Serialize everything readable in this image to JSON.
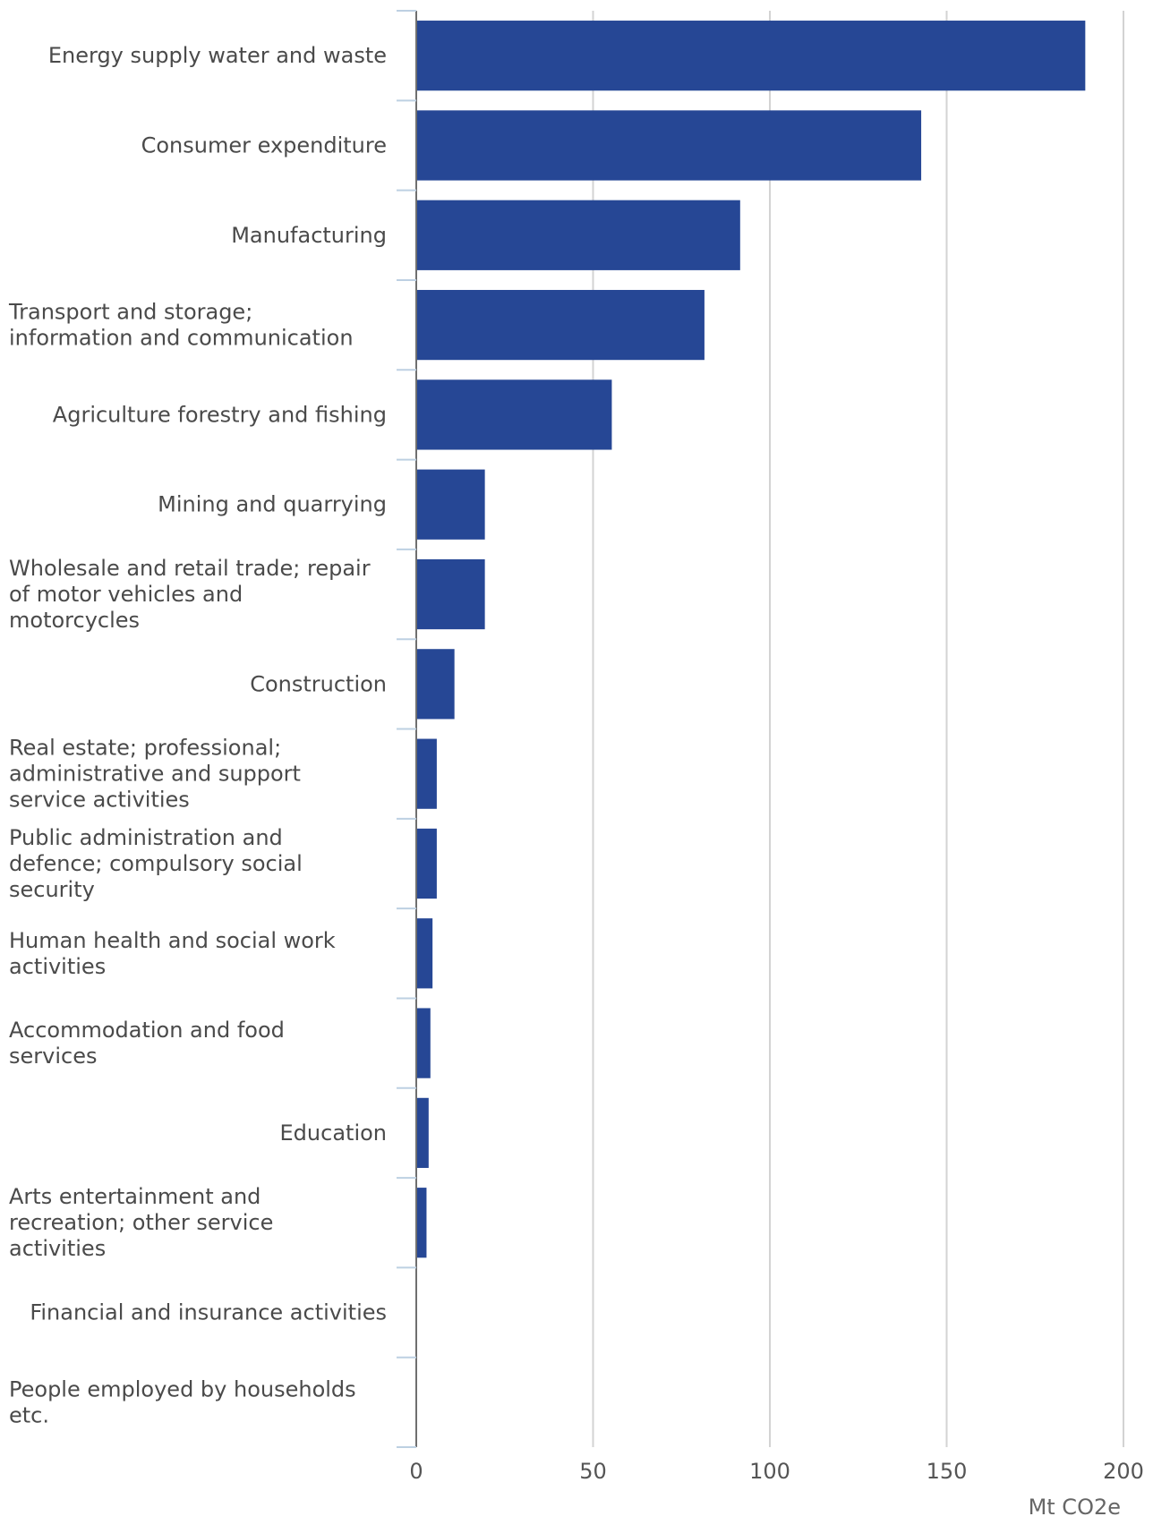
{
  "chart_data": {
    "type": "bar",
    "orientation": "horizontal",
    "categories": [
      "Energy supply water and waste",
      "Consumer expenditure",
      "Manufacturing",
      "Transport and storage; information and communication",
      "Agriculture forestry and fishing",
      "Mining and quarrying",
      "Wholesale and retail trade; repair of motor vehicles and motorcycles",
      "Construction",
      "Real estate; professional; administrative and support service activities",
      "Public administration and defence; compulsory social security",
      "Human health and social work activities",
      "Accommodation and food services",
      "Education",
      "Arts entertainment and recreation; other service activities",
      "Financial and insurance activities",
      "People employed by households etc."
    ],
    "category_lines": [
      [
        "Energy supply water and waste"
      ],
      [
        "Consumer expenditure"
      ],
      [
        "Manufacturing"
      ],
      [
        "Transport and storage;",
        "information and communication"
      ],
      [
        "Agriculture forestry and fishing"
      ],
      [
        "Mining and quarrying"
      ],
      [
        "Wholesale and retail trade; repair",
        "of motor vehicles and",
        "motorcycles"
      ],
      [
        "Construction"
      ],
      [
        "Real estate; professional;",
        "administrative and support",
        "service activities"
      ],
      [
        "Public administration and",
        "defence; compulsory social",
        "security"
      ],
      [
        "Human health and social work",
        "activities"
      ],
      [
        "Accommodation and food",
        "services"
      ],
      [
        "Education"
      ],
      [
        "Arts entertainment and",
        "recreation; other service",
        "activities"
      ],
      [
        "Financial and insurance activities"
      ],
      [
        "People employed by households",
        "etc."
      ]
    ],
    "values": [
      189.2,
      142.8,
      91.6,
      81.5,
      55.3,
      19.4,
      19.4,
      10.8,
      5.8,
      5.8,
      4.6,
      4.0,
      3.5,
      2.9,
      0.1,
      0.0
    ],
    "xlabel": "Mt CO2e",
    "ylabel": "",
    "title": "",
    "xlim": [
      0,
      200
    ],
    "xticks": [
      "0",
      "50",
      "100",
      "150",
      "200"
    ],
    "grid": "vertical",
    "legend": "none",
    "bar_color": "#264795"
  }
}
